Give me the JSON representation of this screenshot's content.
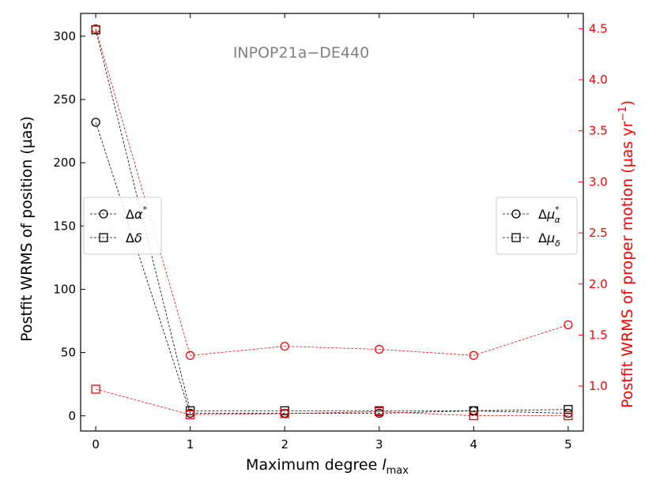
{
  "chart_data": {
    "type": "line",
    "annotation": "INPOP21a−DE440",
    "xlabel_main": "Maximum degree ",
    "xlabel_italic": "l",
    "xlabel_sub": "max",
    "ylabel_left": "Postfit WRMS of position (µas)",
    "ylabel_right_main": "Postfit WRMS of proper motion (µas yr",
    "ylabel_right_sup": "−1",
    "ylabel_right_close": ")",
    "x_ticks": [
      "0",
      "1",
      "2",
      "3",
      "4",
      "5"
    ],
    "xlim": [
      -0.16,
      5.16
    ],
    "ylim_left": [
      -12,
      318
    ],
    "ylim_right": [
      0.56,
      4.65
    ],
    "y_ticks_left": [
      "0",
      "50",
      "100",
      "150",
      "200",
      "250",
      "300"
    ],
    "y_ticks_right": [
      "1.0",
      "1.5",
      "2.0",
      "2.5",
      "3.0",
      "3.5",
      "4.0",
      "4.5"
    ],
    "grid": false,
    "x": [
      0,
      1,
      2,
      3,
      4,
      5
    ],
    "left_series": [
      {
        "marker": "circle",
        "color": "#000000",
        "values": [
          232,
          2,
          2,
          2,
          4,
          2
        ]
      },
      {
        "marker": "square",
        "color": "#000000",
        "values": [
          305,
          4,
          4,
          4,
          4,
          5
        ]
      }
    ],
    "right_series": [
      {
        "marker": "circle",
        "color": "#ff0000",
        "values": [
          4.5,
          1.3,
          1.39,
          1.36,
          1.3,
          1.6
        ]
      },
      {
        "marker": "square",
        "color": "#ff0000",
        "values": [
          0.97,
          0.72,
          0.73,
          0.75,
          0.71,
          0.71
        ]
      }
    ],
    "legend_left": {
      "placement": "center-left",
      "entries": [
        {
          "marker": "circle",
          "base": "Δ",
          "sym": "α",
          "sup": "*",
          "sub": ""
        },
        {
          "marker": "square",
          "base": "Δ",
          "sym": "δ",
          "sup": "",
          "sub": ""
        }
      ]
    },
    "legend_right": {
      "placement": "center-right",
      "entries": [
        {
          "marker": "circle",
          "base": "Δ",
          "sym": "μ",
          "sup": "*",
          "sub": "α"
        },
        {
          "marker": "square",
          "base": "Δ",
          "sym": "μ",
          "sup": "",
          "sub": "δ"
        }
      ]
    }
  }
}
